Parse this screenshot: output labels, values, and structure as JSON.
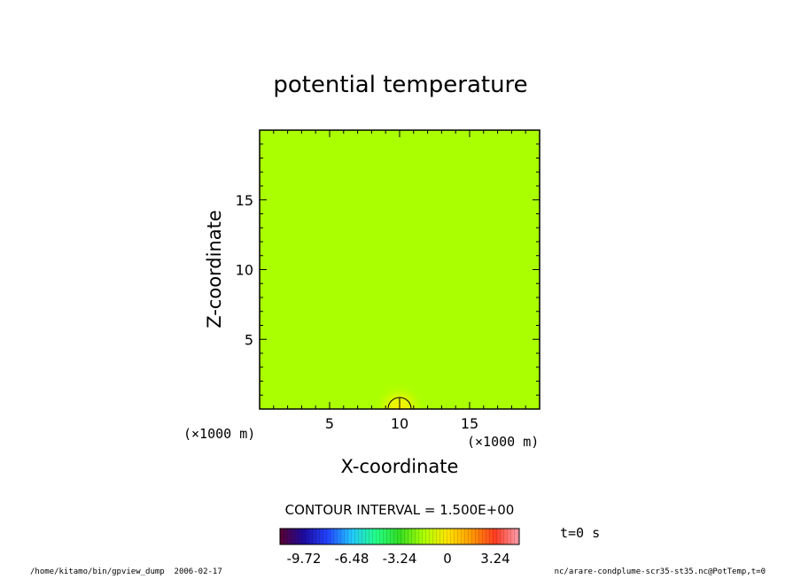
{
  "chart_data": {
    "type": "heatmap",
    "title": "potential temperature",
    "xlabel": "X-coordinate",
    "ylabel": "Z-coordinate",
    "x_unit": "(×1000 m)",
    "y_unit": "(×1000 m)",
    "xlim": [
      0,
      20
    ],
    "ylim": [
      0,
      20
    ],
    "x_ticks": [
      5,
      10,
      15
    ],
    "y_ticks": [
      5,
      10,
      15
    ],
    "background_value": 0,
    "background_color": "#aaff00",
    "anomaly": {
      "x": 10,
      "z": 0,
      "radius_km": 1.5,
      "peak_color": "#ffee00"
    },
    "contour_interval_label": "CONTOUR INTERVAL = 1.500E+00",
    "time_label": "t=0 s",
    "colorbar": {
      "ticks": [
        -9.72,
        -6.48,
        -3.24,
        0,
        3.24
      ],
      "tick_labels": [
        "-9.72",
        "-6.48",
        "-3.24",
        "0",
        "3.24"
      ],
      "range": [
        -11.34,
        4.86
      ],
      "colors": [
        "#5a0030",
        "#1c0aa0",
        "#2244ff",
        "#22c8ff",
        "#22ff88",
        "#33dd22",
        "#aaff00",
        "#ffe400",
        "#ff9a00",
        "#ff3a22",
        "#ffa0b0"
      ]
    }
  },
  "footer": {
    "left": "/home/kitamo/bin/gpview_dump  2006-02-17",
    "right": "nc/arare-condplume-scr35-st35.nc@PotTemp,t=0"
  }
}
